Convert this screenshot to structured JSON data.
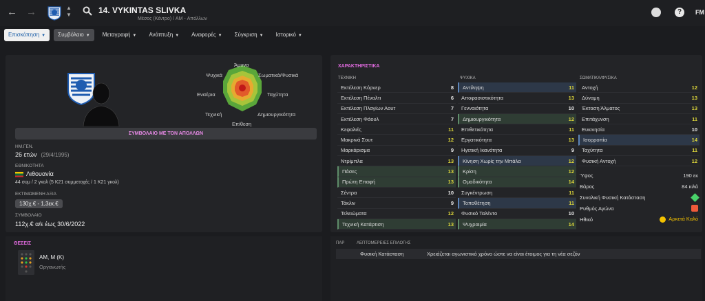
{
  "header": {
    "title": "14. VYKINTAS SLIVKA",
    "subtitle": "Μέσος (Κέντρο) / AM - Απόλλων",
    "logo": "FM"
  },
  "tabs": [
    {
      "label": "Επισκόπηση"
    },
    {
      "label": "Συμβόλαιο"
    },
    {
      "label": "Μεταγραφή"
    },
    {
      "label": "Ανάπτυξη"
    },
    {
      "label": "Αναφορές"
    },
    {
      "label": "Σύγκριση"
    },
    {
      "label": "Ιστορικό"
    }
  ],
  "radar": {
    "labels": {
      "top": "Άμυνα",
      "top_right": "Σωματικά/Φυσικά",
      "right": "Ταχύτητα",
      "bottom_right": "Δημιουργικότητα",
      "bottom": "Επίθεση",
      "bottom_left": "Τεχνική",
      "left": "Εναέρια",
      "top_left": "Ψυχικά"
    }
  },
  "contract_banner": "ΣΥΜΒΟΛΑΙΟ ΜΕ ΤΟΝ ΑΠΟΛΛΩΝ",
  "info": {
    "dob_label": "ΗΜ.ΓΕΝ.",
    "age": "26 ετών",
    "dob": "(29/4/1995)",
    "nationality_label": "ΕΘΝΙΚΟΤΗΤΑ",
    "nationality": "Λιθουανία",
    "caps": "44 συμ / 2 γκολ (5 Κ21 συμμετοχές / 1 Κ21 γκολ)",
    "value_label": "ΕΚΤΙΜΩΜΕΝΗ ΑΞΙΑ",
    "value": "130χ.€ - 1,3εκ.€",
    "contract_label": "ΣΥΜΒΟΛΑΙΟ",
    "contract": "112χ.€ α/ε έως 30/6/2022"
  },
  "attributes": {
    "title": "ΧΑΡΑΚΤΗΡΙΣΤΙΚΑ",
    "technical_head": "ΤΕΧΝΙΚΗ",
    "mental_head": "ΨΥΧΙΚΑ",
    "physical_head": "ΣΩΜΑΤΙΚΑ/ΦΥΣΙΚΑ",
    "technical": [
      {
        "name": "Εκτέλεση Κόρνερ",
        "value": "8",
        "hl": ""
      },
      {
        "name": "Εκτέλεση Πέναλτι",
        "value": "6",
        "hl": ""
      },
      {
        "name": "Εκτέλεση Πλαγίων Αουτ",
        "value": "7",
        "hl": ""
      },
      {
        "name": "Εκτέλεση Φάουλ",
        "value": "7",
        "hl": ""
      },
      {
        "name": "Κεφαλιές",
        "value": "11",
        "hl": ""
      },
      {
        "name": "Μακρινά Σουτ",
        "value": "12",
        "hl": ""
      },
      {
        "name": "Μαρκάρισμα",
        "value": "9",
        "hl": ""
      },
      {
        "name": "Ντρίμπλα",
        "value": "13",
        "hl": ""
      },
      {
        "name": "Πάσες",
        "value": "13",
        "hl": "g"
      },
      {
        "name": "Πρώτη Επαφή",
        "value": "13",
        "hl": "g"
      },
      {
        "name": "Σέντρα",
        "value": "10",
        "hl": ""
      },
      {
        "name": "Τάκλιν",
        "value": "9",
        "hl": ""
      },
      {
        "name": "Τελειώματα",
        "value": "12",
        "hl": ""
      },
      {
        "name": "Τεχνική Κατάρτιση",
        "value": "13",
        "hl": "g"
      }
    ],
    "mental": [
      {
        "name": "Αντίληψη",
        "value": "11",
        "hl": "b"
      },
      {
        "name": "Αποφασιστικότητα",
        "value": "13",
        "hl": ""
      },
      {
        "name": "Γενναιότητα",
        "value": "10",
        "hl": ""
      },
      {
        "name": "Δημιουργικότητα",
        "value": "12",
        "hl": "g"
      },
      {
        "name": "Επιθετικότητα",
        "value": "11",
        "hl": ""
      },
      {
        "name": "Εργατικότητα",
        "value": "13",
        "hl": ""
      },
      {
        "name": "Ηγετική Ικανότητα",
        "value": "9",
        "hl": ""
      },
      {
        "name": "Κίνηση Χωρίς την Μπάλα",
        "value": "12",
        "hl": "b"
      },
      {
        "name": "Κρίση",
        "value": "12",
        "hl": "g"
      },
      {
        "name": "Ομαδικότητα",
        "value": "14",
        "hl": "g"
      },
      {
        "name": "Συγκέντρωση",
        "value": "11",
        "hl": ""
      },
      {
        "name": "Τοποθέτηση",
        "value": "11",
        "hl": "b"
      },
      {
        "name": "Φυσικό Ταλέντο",
        "value": "10",
        "hl": ""
      },
      {
        "name": "Ψυχραιμία",
        "value": "14",
        "hl": "g"
      }
    ],
    "physical": [
      {
        "name": "Αντοχή",
        "value": "12",
        "hl": ""
      },
      {
        "name": "Δύναμη",
        "value": "13",
        "hl": ""
      },
      {
        "name": "Έκταση Άλματος",
        "value": "13",
        "hl": ""
      },
      {
        "name": "Επιτάχυνση",
        "value": "11",
        "hl": ""
      },
      {
        "name": "Ευκινησία",
        "value": "10",
        "hl": ""
      },
      {
        "name": "Ισορροπία",
        "value": "14",
        "hl": "b"
      },
      {
        "name": "Ταχύτητα",
        "value": "11",
        "hl": ""
      },
      {
        "name": "Φυσική Αντοχή",
        "value": "12",
        "hl": ""
      }
    ],
    "extras": {
      "height_label": "Ύψος",
      "height": "190 εκ",
      "weight_label": "Βάρος",
      "weight": "84 κιλά",
      "condition_label": "Συνολική Φυσική Κατάσταση",
      "sharpness_label": "Ρυθμός Αγώνα",
      "morale_label": "Ηθικό",
      "morale": "Αρκετά Καλό"
    }
  },
  "positions": {
    "title": "ΘΕΣΕΙΣ",
    "positions_text": "AM, M (K)",
    "role": "Οργανωτής"
  },
  "selection": {
    "col1": "ΠΑΡ",
    "col2": "ΛΕΠΤΟΜΕΡΕΙΕΣ ΕΠΙΛΟΓΗΣ",
    "row_label": "Φυσική Κατάσταση",
    "row_text": "Χρειάζεται αγωνιστικό χρόνο ώστε να είναι έτοιμος για τη νέα σεζόν"
  },
  "colors": {
    "accent": "#e26be0",
    "value_high": "#dcd53a",
    "value_mid": "#e8e8e8"
  }
}
